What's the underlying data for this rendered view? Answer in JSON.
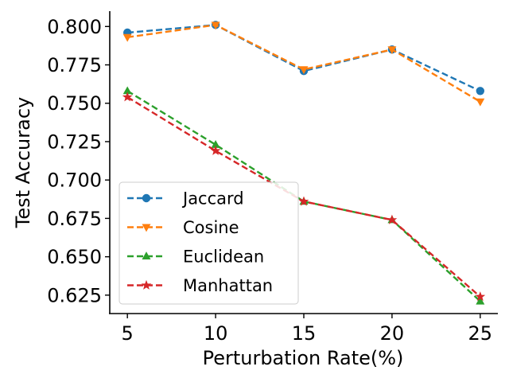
{
  "chart_data": {
    "type": "line",
    "title": "",
    "xlabel": "Perturbation Rate(%)",
    "ylabel": "Test Accuracy",
    "x": [
      5,
      10,
      15,
      20,
      25
    ],
    "x_ticks": [
      "5",
      "10",
      "15",
      "20",
      "25"
    ],
    "xlim": [
      4.0,
      26.0
    ],
    "y_ticks": [
      "0.625",
      "0.650",
      "0.675",
      "0.700",
      "0.725",
      "0.750",
      "0.775",
      "0.800"
    ],
    "ylim": [
      0.613,
      0.81
    ],
    "grid": false,
    "legend_position": "lower-left",
    "series": [
      {
        "name": "Jaccard",
        "values": [
          0.796,
          0.801,
          0.771,
          0.785,
          0.758
        ],
        "color": "#1f77b4",
        "marker": "circle",
        "line_style": "dashed"
      },
      {
        "name": "Cosine",
        "values": [
          0.793,
          0.801,
          0.772,
          0.785,
          0.751
        ],
        "color": "#ff7f0e",
        "marker": "triangle-down",
        "line_style": "dashed"
      },
      {
        "name": "Euclidean",
        "values": [
          0.758,
          0.723,
          0.686,
          0.674,
          0.621
        ],
        "color": "#2ca02c",
        "marker": "triangle-up",
        "line_style": "dashed"
      },
      {
        "name": "Manhattan",
        "values": [
          0.754,
          0.719,
          0.686,
          0.674,
          0.624
        ],
        "color": "#d62728",
        "marker": "star",
        "line_style": "dashed"
      }
    ]
  }
}
